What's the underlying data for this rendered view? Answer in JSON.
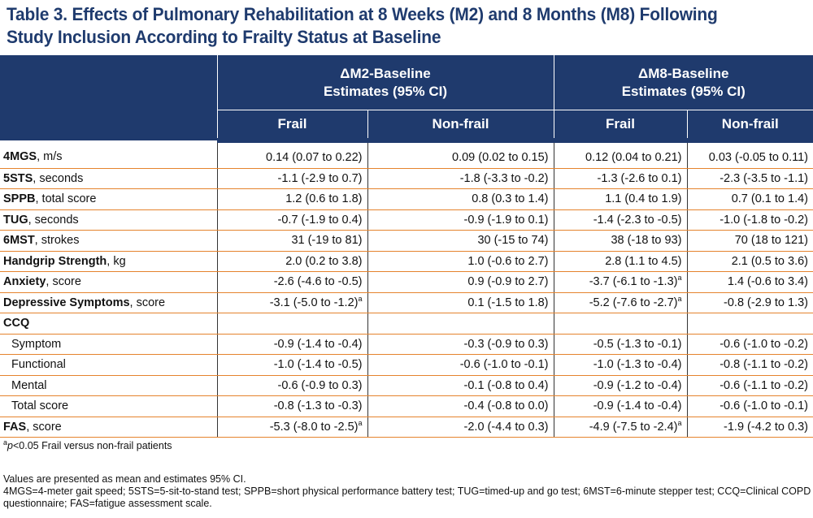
{
  "title": {
    "line1": "Table 3. Effects of Pulmonary Rehabilitation at 8 Weeks (M2) and 8 Months (M8) Following",
    "line2": "Study Inclusion According to Frailty Status at Baseline"
  },
  "header": {
    "group1_line1": "ΔM2-Baseline",
    "group1_line2": "Estimates (95% CI)",
    "group2_line1": "ΔM8-Baseline",
    "group2_line2": "Estimates (95% CI)",
    "frail": "Frail",
    "nonfrail": "Non-frail"
  },
  "rows": [
    {
      "bold": "4MGS",
      "rest": ", m/s",
      "v": [
        "0.14 (0.07 to 0.22)",
        "0.09 (0.02 to 0.15)",
        "0.12 (0.04 to 0.21)",
        "0.03 (-0.05 to 0.11)"
      ]
    },
    {
      "bold": "5STS",
      "rest": ", seconds",
      "v": [
        "-1.1 (-2.9 to 0.7)",
        "-1.8 (-3.3 to -0.2)",
        "-1.3 (-2.6 to 0.1)",
        "-2.3 (-3.5 to -1.1)"
      ]
    },
    {
      "bold": "SPPB",
      "rest": ", total score",
      "v": [
        "1.2 (0.6 to 1.8)",
        "0.8 (0.3 to 1.4)",
        "1.1 (0.4 to 1.9)",
        "0.7 (0.1 to 1.4)"
      ]
    },
    {
      "bold": "TUG",
      "rest": ", seconds",
      "v": [
        "-0.7 (-1.9 to 0.4)",
        "-0.9 (-1.9 to 0.1)",
        "-1.4 (-2.3 to -0.5)",
        "-1.0 (-1.8 to -0.2)"
      ]
    },
    {
      "bold": "6MST",
      "rest": ", strokes",
      "v": [
        "31 (-19 to 81)",
        "30 (-15 to 74)",
        "38 (-18 to 93)",
        "70 (18 to 121)"
      ]
    },
    {
      "bold": "Handgrip Strength",
      "rest": ", kg",
      "v": [
        "2.0 (0.2 to 3.8)",
        "1.0 (-0.6 to 2.7)",
        "2.8 (1.1 to 4.5)",
        "2.1 (0.5 to 3.6)"
      ]
    },
    {
      "bold": "Anxiety",
      "rest": ", score",
      "v": [
        "-2.6 (-4.6 to -0.5)",
        "0.9 (-0.9 to 2.7)",
        "-3.7 (-6.1 to -1.3)",
        "1.4 (-0.6 to 3.4)"
      ],
      "sup": [
        false,
        false,
        true,
        false
      ]
    },
    {
      "bold": "Depressive Symptoms",
      "rest": ", score",
      "v": [
        "-3.1 (-5.0 to -1.2)",
        "0.1 (-1.5 to 1.8)",
        "-5.2 (-7.6 to -2.7)",
        "-0.8 (-2.9 to 1.3)"
      ],
      "sup": [
        true,
        false,
        true,
        false
      ]
    },
    {
      "bold": "CCQ",
      "rest": "",
      "v": [
        "",
        "",
        "",
        ""
      ]
    },
    {
      "sub": "Symptom",
      "v": [
        "-0.9 (-1.4 to -0.4)",
        "-0.3 (-0.9 to 0.3)",
        "-0.5 (-1.3 to -0.1)",
        "-0.6 (-1.0 to -0.2)"
      ]
    },
    {
      "sub": "Functional",
      "v": [
        "-1.0 (-1.4 to -0.5)",
        "-0.6 (-1.0 to -0.1)",
        "-1.0 (-1.3 to -0.4)",
        "-0.8 (-1.1 to -0.2)"
      ]
    },
    {
      "sub": "Mental",
      "v": [
        "-0.6 (-0.9 to 0.3)",
        "-0.1 (-0.8 to 0.4)",
        "-0.9 (-1.2 to -0.4)",
        "-0.6 (-1.1 to -0.2)"
      ]
    },
    {
      "sub": "Total score",
      "v": [
        "-0.8 (-1.3 to -0.3)",
        "-0.4 (-0.8 to 0.0)",
        "-0.9 (-1.4 to -0.4)",
        "-0.6 (-1.0 to -0.1)"
      ]
    },
    {
      "bold": "FAS",
      "rest": ", score",
      "v": [
        "-5.3 (-8.0 to -2.5)",
        "-2.0 (-4.4 to 0.3)",
        "-4.9 (-7.5 to -2.4)",
        "-1.9 (-4.2 to 0.3)"
      ],
      "sup": [
        true,
        false,
        true,
        false
      ]
    }
  ],
  "sup_marker": "a",
  "footnote": {
    "sup": "a",
    "p": "p",
    "text": "<0.05 Frail versus non-frail patients"
  },
  "notes": {
    "line1": "Values are presented as mean and estimates 95% CI.",
    "line2": "4MGS=4-meter gait speed; 5STS=5-sit-to-stand test; SPPB=short physical performance battery test; TUG=timed-up and go test; 6MST=6-minute stepper test; CCQ=Clinical COPD",
    "line3": "questionnaire; FAS=fatigue assessment scale."
  }
}
